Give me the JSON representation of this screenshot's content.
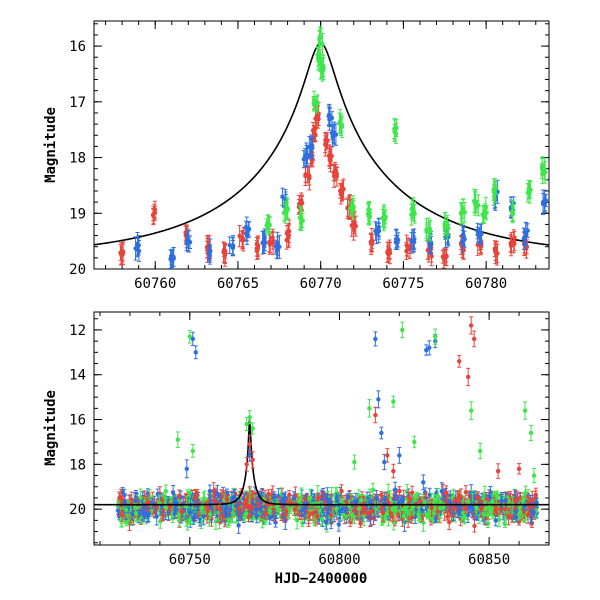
{
  "chart_data": [
    {
      "type": "scatter",
      "panel": "top",
      "xlabel": "",
      "ylabel": "Magnitude",
      "xlim": [
        60756.3,
        60783.8
      ],
      "ylim": [
        20.0,
        15.55
      ],
      "y_inverted": true,
      "x_ticks": [
        60760,
        60765,
        60770,
        60775,
        60780
      ],
      "y_ticks": [
        16,
        17,
        18,
        19,
        20
      ],
      "grid": false,
      "legend": "none",
      "series": [
        {
          "color": "#e8433a",
          "description": "red filter points",
          "x": [
            60758.0,
            60759.9,
            60761.9,
            60763.2,
            60764.2,
            60765.2,
            60766.2,
            60767.0,
            60768.0,
            60768.8,
            60769.2,
            60769.4,
            60769.6,
            60769.8,
            60770.3,
            60770.6,
            60770.9,
            60771.3,
            60771.7,
            60772.0,
            60773.0,
            60774.1,
            60775.3,
            60776.6,
            60777.5,
            60778.6,
            60779.6,
            60780.6,
            60781.6,
            60782.4
          ],
          "y": [
            19.7,
            19.0,
            19.4,
            19.6,
            19.7,
            19.5,
            19.6,
            19.5,
            19.4,
            18.8,
            18.3,
            18.0,
            17.6,
            17.3,
            17.7,
            18.0,
            18.3,
            18.6,
            18.9,
            19.2,
            19.5,
            19.7,
            19.6,
            19.7,
            19.8,
            19.6,
            19.6,
            19.7,
            19.5,
            19.6
          ]
        },
        {
          "color": "#2e6fdf",
          "description": "blue filter points",
          "x": [
            60758.9,
            60761.0,
            60762.0,
            60763.3,
            60764.6,
            60765.6,
            60766.6,
            60767.4,
            60767.8,
            60769.1,
            60769.4,
            60770.6,
            60770.8,
            60773.4,
            60774.6,
            60775.6,
            60776.6,
            60777.6,
            60778.6,
            60779.6,
            60780.6,
            60781.6,
            60782.4,
            60783.5
          ],
          "y": [
            19.6,
            19.8,
            19.5,
            19.7,
            19.6,
            19.3,
            19.5,
            19.6,
            18.8,
            18.0,
            17.8,
            17.3,
            17.6,
            19.3,
            19.5,
            19.5,
            19.5,
            19.4,
            19.4,
            19.4,
            18.7,
            18.9,
            19.4,
            18.8
          ]
        },
        {
          "color": "#3ee64a",
          "description": "green filter points",
          "x": [
            60766.8,
            60767.9,
            60768.8,
            60769.7,
            60769.9,
            60770.0,
            60770.1,
            60771.2,
            60771.9,
            60772.9,
            60773.8,
            60774.5,
            60775.6,
            60776.5,
            60777.6,
            60778.6,
            60779.4,
            60779.9,
            60780.5,
            60781.5,
            60782.6,
            60783.5
          ],
          "y": [
            19.2,
            19.0,
            19.1,
            17.0,
            16.2,
            15.9,
            16.4,
            17.4,
            18.9,
            19.0,
            19.1,
            17.5,
            19.0,
            19.3,
            19.2,
            19.0,
            18.8,
            19.0,
            18.6,
            19.0,
            18.6,
            18.2
          ]
        }
      ],
      "model_curve": {
        "color": "#000000",
        "t0": 60770.0,
        "peak_mag": 15.95,
        "baseline_mag": 19.8,
        "u0": 0.08,
        "tE": 10.0
      }
    },
    {
      "type": "scatter",
      "panel": "bottom",
      "xlabel": "HJD−2400000",
      "ylabel": "Magnitude",
      "xlim": [
        60718.0,
        60870.0
      ],
      "ylim": [
        21.6,
        11.2
      ],
      "y_inverted": true,
      "x_ticks": [
        60750,
        60800,
        60850
      ],
      "y_ticks": [
        12,
        14,
        16,
        18,
        20
      ],
      "grid": false,
      "legend": "none",
      "baseline_band": {
        "x_from": 60726,
        "x_to": 60866,
        "y_center": 19.9,
        "y_halfwidth": 0.9
      },
      "series": [
        {
          "color": "#e8433a",
          "description": "red filter points",
          "x": [
            60760,
            60769,
            60770,
            60771,
            60812,
            60816,
            60818,
            60840,
            60843,
            60844,
            60845,
            60853,
            60860
          ],
          "y": [
            20.0,
            18.0,
            17.1,
            17.8,
            15.8,
            17.6,
            18.3,
            13.4,
            14.1,
            11.8,
            12.4,
            18.3,
            18.2
          ]
        },
        {
          "color": "#2e6fdf",
          "description": "blue filter points",
          "x": [
            60749,
            60751,
            60752,
            60770,
            60812,
            60813,
            60814,
            60815,
            60829,
            60830,
            60832,
            60828,
            60820
          ],
          "y": [
            18.2,
            12.4,
            13.0,
            17.6,
            12.4,
            15.1,
            16.6,
            17.9,
            12.9,
            12.8,
            12.5,
            18.8,
            17.6
          ]
        },
        {
          "color": "#3ee64a",
          "description": "green filter points",
          "x": [
            60742,
            60746,
            60750,
            60751,
            60769,
            60770,
            60771,
            60805,
            60810,
            60818,
            60821,
            60825,
            60832,
            60844,
            60847,
            60862,
            60864,
            60865
          ],
          "y": [
            19.2,
            16.9,
            12.3,
            17.4,
            16.2,
            15.9,
            16.4,
            17.9,
            15.5,
            15.2,
            12.0,
            17.0,
            12.3,
            15.6,
            17.4,
            15.6,
            16.6,
            18.5
          ]
        }
      ],
      "model_curve": {
        "color": "#000000",
        "t0": 60770.0,
        "peak_mag": 15.95,
        "baseline_mag": 19.8,
        "u0": 0.08,
        "tE": 3.0
      }
    }
  ]
}
